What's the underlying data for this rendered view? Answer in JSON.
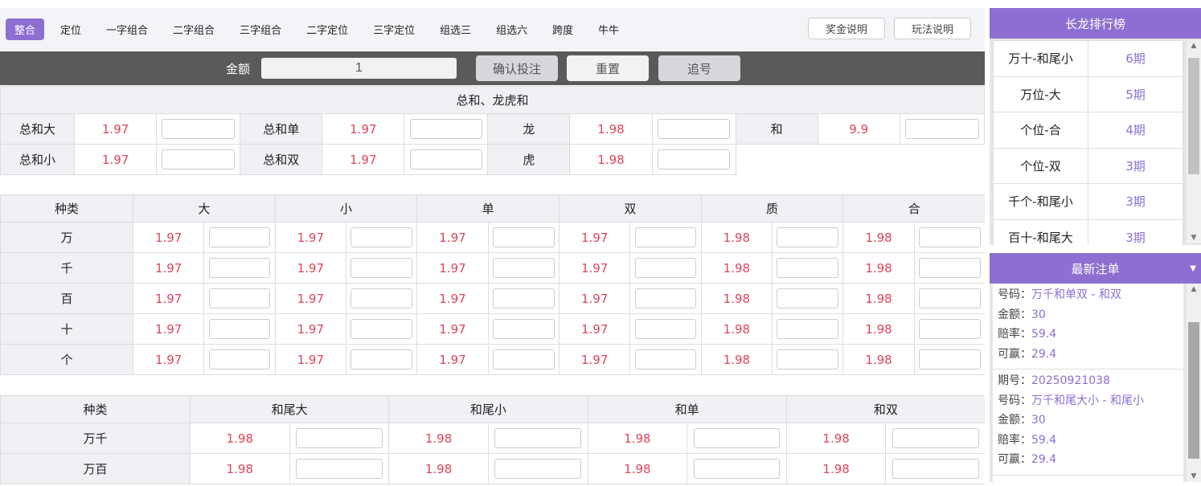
{
  "nav": {
    "tabs": [
      "整合",
      "定位",
      "一字组合",
      "二字组合",
      "三字组合",
      "二字定位",
      "三字定位",
      "组选三",
      "组选六",
      "跨度",
      "牛牛"
    ],
    "active": 0,
    "prize_info": "奖金说明",
    "rules": "玩法说明"
  },
  "bet_bar": {
    "amount_label": "金额",
    "amount_value": "1",
    "confirm": "确认投注",
    "reset": "重置",
    "chase": "追号"
  },
  "sum_section": {
    "title": "总和、龙虎和",
    "rows": [
      [
        [
          "总和大",
          "1.97"
        ],
        [
          "总和单",
          "1.97"
        ],
        [
          "龙",
          "1.98"
        ],
        [
          "和",
          "9.9"
        ]
      ],
      [
        [
          "总和小",
          "1.97"
        ],
        [
          "总和双",
          "1.97"
        ],
        [
          "虎",
          "1.98"
        ]
      ]
    ]
  },
  "digit_table": {
    "headers": [
      "种类",
      "大",
      "小",
      "单",
      "双",
      "质",
      "合"
    ],
    "rows": [
      {
        "label": "万",
        "odds": [
          "1.97",
          "1.97",
          "1.97",
          "1.97",
          "1.98",
          "1.98"
        ]
      },
      {
        "label": "千",
        "odds": [
          "1.97",
          "1.97",
          "1.97",
          "1.97",
          "1.98",
          "1.98"
        ]
      },
      {
        "label": "百",
        "odds": [
          "1.97",
          "1.97",
          "1.97",
          "1.97",
          "1.98",
          "1.98"
        ]
      },
      {
        "label": "十",
        "odds": [
          "1.97",
          "1.97",
          "1.97",
          "1.97",
          "1.98",
          "1.98"
        ]
      },
      {
        "label": "个",
        "odds": [
          "1.97",
          "1.97",
          "1.97",
          "1.97",
          "1.98",
          "1.98"
        ]
      }
    ]
  },
  "pair_table": {
    "headers": [
      "种类",
      "和尾大",
      "和尾小",
      "和单",
      "和双"
    ],
    "rows": [
      {
        "label": "万千",
        "odds": [
          "1.98",
          "1.98",
          "1.98",
          "1.98"
        ]
      },
      {
        "label": "万百",
        "odds": [
          "1.98",
          "1.98",
          "1.98",
          "1.98"
        ]
      }
    ]
  },
  "ranking": {
    "title": "长龙排行榜",
    "items": [
      [
        "万十-和尾小",
        "6期"
      ],
      [
        "万位-大",
        "5期"
      ],
      [
        "个位-合",
        "4期"
      ],
      [
        "个位-双",
        "3期"
      ],
      [
        "千个-和尾小",
        "3期"
      ],
      [
        "百十-和尾大",
        "3期"
      ]
    ]
  },
  "latest": {
    "title": "最新注单",
    "entries": [
      [
        [
          "号码：",
          "万千和单双 - 和双"
        ],
        [
          "金额：",
          "30"
        ],
        [
          "赔率：",
          "59.4"
        ],
        [
          "可赢：",
          "29.4"
        ]
      ],
      [
        [
          "期号：",
          "20250921038"
        ],
        [
          "号码：",
          "万千和尾大小 - 和尾小"
        ],
        [
          "金额：",
          "30"
        ],
        [
          "赔率：",
          "59.4"
        ],
        [
          "可赢：",
          "29.4"
        ]
      ]
    ]
  },
  "colors": {
    "accent": "#8c6fd1",
    "odds": "#e0445a",
    "bar": "#5a5a5a"
  }
}
